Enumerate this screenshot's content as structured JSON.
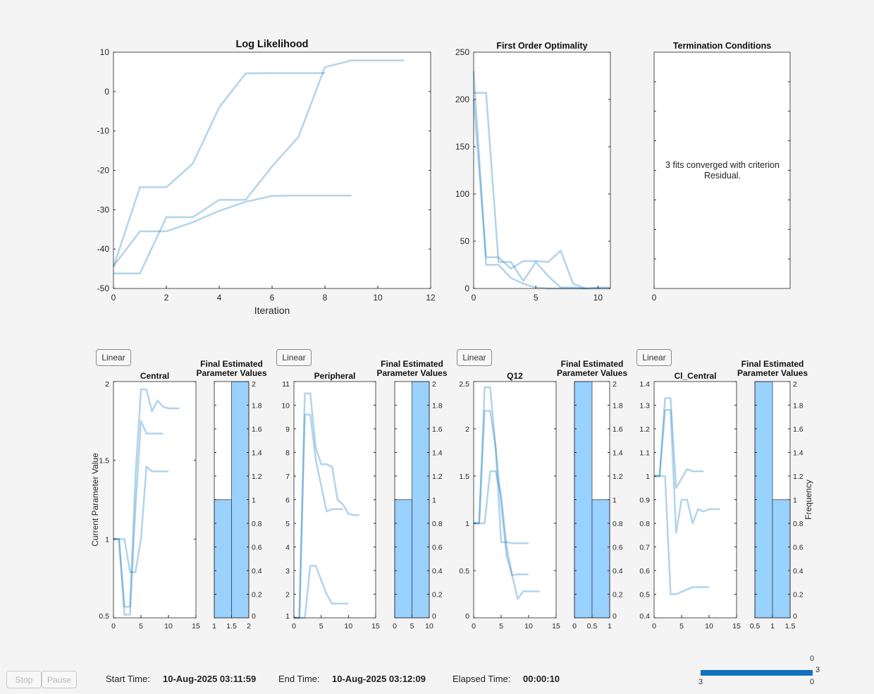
{
  "buttons": {
    "stop": "Stop",
    "pause": "Pause",
    "scale_buttons": [
      "Linear",
      "Linear",
      "Linear",
      "Linear"
    ]
  },
  "status": {
    "start_label": "Start  Time:",
    "start_value": "10-Aug-2025  03:11:59",
    "end_label": "End  Time:",
    "end_value": "10-Aug-2025  03:12:09",
    "elapsed_label": "Elapsed  Time:",
    "elapsed_value": "00:00:10"
  },
  "termination_message": "3 fits converged with criterion Residual.",
  "progress": {
    "value": 3,
    "max": 3,
    "labels": {
      "top": "0",
      "right": "3",
      "bottom_left": "3",
      "bottom_right": "0"
    },
    "color": "#1171be"
  },
  "colors": {
    "line": "#0072bd",
    "histogram_bar": "#99d1ff",
    "background": "#f4f4f4"
  },
  "chart_data": [
    {
      "type": "line",
      "title": "Log Likelihood",
      "xlabel": "Iteration",
      "ylabel": "",
      "xlim": [
        0,
        12
      ],
      "ylim": [
        -50,
        10
      ],
      "xticks": [
        0,
        2,
        4,
        6,
        8,
        10,
        12
      ],
      "yticks": [
        -50,
        -40,
        -30,
        -20,
        -10,
        0,
        10
      ],
      "series": [
        {
          "x": [
            0,
            1,
            2,
            3,
            4,
            5,
            6,
            7,
            8
          ],
          "y": [
            -44.5,
            -24.3,
            -24.3,
            -18.3,
            -4,
            4.6,
            4.7,
            4.7,
            4.7
          ]
        },
        {
          "x": [
            0,
            1,
            2,
            3,
            4,
            5,
            6,
            7,
            8,
            9,
            10,
            11
          ],
          "y": [
            -46.2,
            -46.2,
            -31.9,
            -31.9,
            -27.5,
            -27.5,
            -19,
            -11.5,
            6.2,
            7.9,
            7.9,
            7.9
          ]
        },
        {
          "x": [
            0,
            1,
            2,
            3,
            4,
            5,
            6,
            7,
            8,
            9
          ],
          "y": [
            -44.3,
            -35.5,
            -35.5,
            -33.2,
            -30.3,
            -28,
            -26.5,
            -26.4,
            -26.4,
            -26.4
          ]
        }
      ]
    },
    {
      "type": "line",
      "title": "First Order Optimality",
      "xlabel": "",
      "ylabel": "",
      "xlim": [
        0,
        11
      ],
      "ylim": [
        0,
        250
      ],
      "xticks": [
        0,
        5,
        10
      ],
      "yticks": [
        0,
        50,
        100,
        150,
        200,
        250
      ],
      "series": [
        {
          "x": [
            0,
            1,
            2,
            3,
            4,
            5,
            6,
            7,
            8,
            9,
            10,
            11
          ],
          "y": [
            230,
            25,
            25,
            11,
            5,
            1,
            0,
            0,
            0,
            0,
            0,
            0
          ]
        },
        {
          "x": [
            0,
            1,
            2,
            3,
            4,
            5,
            6,
            7,
            8,
            9
          ],
          "y": [
            207,
            207,
            28,
            28,
            8,
            28,
            13,
            1,
            1,
            0
          ]
        },
        {
          "x": [
            0,
            1,
            2,
            3,
            4,
            5,
            6,
            7,
            8,
            9,
            10,
            11
          ],
          "y": [
            200,
            33,
            33,
            21,
            29,
            29,
            28,
            40,
            5,
            0,
            1,
            1
          ]
        }
      ]
    },
    {
      "type": "line",
      "title": "Termination Conditions",
      "xlabel": "",
      "ylabel": "",
      "xlim": [
        0,
        1
      ],
      "ylim": [
        0,
        1
      ],
      "xticks": [
        0
      ],
      "yticks": [],
      "series": []
    },
    {
      "type": "line",
      "title": "Central",
      "xlabel": "",
      "ylabel": "Current Parameter Value",
      "xlim": [
        0,
        15
      ],
      "ylim": [
        0.5,
        2
      ],
      "xticks": [
        0,
        5,
        10,
        15
      ],
      "yticks": [
        0.5,
        1,
        1.5,
        2
      ],
      "series": [
        {
          "x": [
            0,
            1,
            2,
            3,
            4,
            5,
            6,
            7,
            8,
            9,
            10,
            11,
            12
          ],
          "y": [
            1,
            1,
            0.57,
            0.57,
            1.4,
            1.95,
            1.95,
            1.81,
            1.88,
            1.84,
            1.83,
            1.83,
            1.83
          ]
        },
        {
          "x": [
            0,
            1,
            2,
            3,
            4,
            5,
            6,
            7,
            8,
            9
          ],
          "y": [
            1,
            1,
            0.52,
            0.52,
            1.2,
            1.75,
            1.67,
            1.67,
            1.67,
            1.67
          ]
        },
        {
          "x": [
            0,
            1,
            2,
            3,
            4,
            5,
            6,
            7,
            8,
            9,
            10
          ],
          "y": [
            1,
            1,
            1,
            0.79,
            0.79,
            1.0,
            1.46,
            1.43,
            1.43,
            1.43,
            1.43
          ]
        }
      ]
    },
    {
      "type": "bar",
      "title": "Final Estimated\nParameter Values",
      "xlim": [
        1,
        2
      ],
      "ylim": [
        0,
        2
      ],
      "xticks": [
        1,
        1.5,
        2
      ],
      "yticks": [
        0,
        0.2,
        0.4,
        0.6,
        0.8,
        1,
        1.2,
        1.4,
        1.6,
        1.8,
        2
      ],
      "bins": [
        [
          1,
          1.5
        ],
        [
          1.5,
          2
        ]
      ],
      "values": [
        1,
        2
      ],
      "ylabel": ""
    },
    {
      "type": "line",
      "title": "Peripheral",
      "xlabel": "",
      "ylabel": "",
      "xlim": [
        0,
        15
      ],
      "ylim": [
        1,
        11
      ],
      "xticks": [
        0,
        5,
        10,
        15
      ],
      "yticks": [
        1,
        2,
        3,
        4,
        5,
        6,
        7,
        8,
        9,
        10,
        11
      ],
      "series": [
        {
          "x": [
            0,
            1,
            2,
            3,
            4,
            5,
            6,
            7,
            8,
            9,
            10,
            11,
            12
          ],
          "y": [
            1,
            1,
            10.5,
            10.5,
            8.2,
            7.5,
            7.5,
            7.4,
            6,
            5.8,
            5.4,
            5.35,
            5.35
          ]
        },
        {
          "x": [
            0,
            1,
            2,
            3,
            4,
            5,
            6,
            7,
            8,
            9
          ],
          "y": [
            1,
            1,
            9.6,
            9.6,
            7.7,
            6.6,
            5.5,
            5.6,
            5.6,
            5.6
          ]
        },
        {
          "x": [
            0,
            1,
            2,
            3,
            4,
            5,
            6,
            7,
            8,
            9,
            10
          ],
          "y": [
            1,
            1,
            1,
            3.2,
            3.2,
            2.6,
            2,
            1.6,
            1.6,
            1.6,
            1.6
          ]
        }
      ]
    },
    {
      "type": "bar",
      "title": "Final Estimated\nParameter Values",
      "xlim": [
        0,
        10
      ],
      "ylim": [
        0,
        2
      ],
      "xticks": [
        0,
        5,
        10
      ],
      "yticks": [
        0,
        0.2,
        0.4,
        0.6,
        0.8,
        1,
        1.2,
        1.4,
        1.6,
        1.8,
        2
      ],
      "bins": [
        [
          0,
          5
        ],
        [
          5,
          10
        ]
      ],
      "values": [
        1,
        2
      ],
      "ylabel": ""
    },
    {
      "type": "line",
      "title": "Q12",
      "xlabel": "",
      "ylabel": "",
      "xlim": [
        0,
        15
      ],
      "ylim": [
        0,
        2.5
      ],
      "xticks": [
        0,
        5,
        10,
        15
      ],
      "yticks": [
        0,
        0.5,
        1,
        1.5,
        2,
        2.5
      ],
      "series": [
        {
          "x": [
            0,
            1,
            2,
            3,
            4,
            5,
            6,
            7,
            8,
            9,
            10
          ],
          "y": [
            1,
            1,
            2.44,
            2.44,
            1.8,
            1.2,
            0.65,
            0.45,
            0.46,
            0.46,
            0.46
          ]
        },
        {
          "x": [
            0,
            1,
            2,
            3,
            4,
            5,
            6,
            7,
            8,
            9,
            10
          ],
          "y": [
            1,
            1,
            2.19,
            2.19,
            1.8,
            0.8,
            0.8,
            0.79,
            0.79,
            0.79,
            0.79
          ]
        },
        {
          "x": [
            0,
            1,
            2,
            3,
            4,
            5,
            6,
            7,
            8,
            9,
            10,
            11,
            12
          ],
          "y": [
            1,
            1,
            1,
            1.55,
            1.55,
            1.3,
            0.75,
            0.45,
            0.2,
            0.28,
            0.28,
            0.28,
            0.28
          ]
        }
      ]
    },
    {
      "type": "bar",
      "title": "Final Estimated\nParameter Values",
      "xlim": [
        0,
        1
      ],
      "ylim": [
        0,
        2
      ],
      "xticks": [
        0,
        0.5,
        1
      ],
      "yticks": [
        0,
        0.2,
        0.4,
        0.6,
        0.8,
        1,
        1.2,
        1.4,
        1.6,
        1.8,
        2
      ],
      "bins": [
        [
          0,
          0.5
        ],
        [
          0.5,
          1
        ]
      ],
      "values": [
        2,
        1
      ],
      "ylabel": ""
    },
    {
      "type": "line",
      "title": "Cl_Central",
      "xlabel": "",
      "ylabel": "",
      "xlim": [
        0,
        15
      ],
      "ylim": [
        0.4,
        1.4
      ],
      "xticks": [
        0,
        5,
        10,
        15
      ],
      "yticks": [
        0.4,
        0.5,
        0.6,
        0.7,
        0.8,
        0.9,
        1,
        1.1,
        1.2,
        1.3,
        1.4
      ],
      "series": [
        {
          "x": [
            0,
            1,
            2,
            3,
            4,
            5,
            6,
            7,
            8,
            9
          ],
          "y": [
            1,
            1,
            1.33,
            1.33,
            0.95,
            0.99,
            1.03,
            1.02,
            1.02,
            1.02
          ]
        },
        {
          "x": [
            0,
            1,
            2,
            3,
            4,
            5,
            6,
            7,
            8,
            9,
            10,
            11,
            12
          ],
          "y": [
            1,
            1,
            1.28,
            1.28,
            0.76,
            0.9,
            0.9,
            0.8,
            0.86,
            0.85,
            0.86,
            0.86,
            0.86
          ]
        },
        {
          "x": [
            0,
            1,
            2,
            3,
            4,
            5,
            6,
            7,
            8,
            9,
            10
          ],
          "y": [
            1,
            1,
            1,
            0.5,
            0.5,
            0.51,
            0.52,
            0.53,
            0.53,
            0.53,
            0.53
          ]
        }
      ]
    },
    {
      "type": "bar",
      "title": "Final Estimated\nParameter Values",
      "xlim": [
        0.5,
        1.5
      ],
      "ylim": [
        0,
        2
      ],
      "xticks": [
        0.5,
        1,
        1.5
      ],
      "yticks": [
        0,
        0.2,
        0.4,
        0.6,
        0.8,
        1,
        1.2,
        1.4,
        1.6,
        1.8,
        2
      ],
      "bins": [
        [
          0.5,
          1
        ],
        [
          1,
          1.5
        ]
      ],
      "values": [
        2,
        1
      ],
      "ylabel": "Frequency"
    }
  ]
}
